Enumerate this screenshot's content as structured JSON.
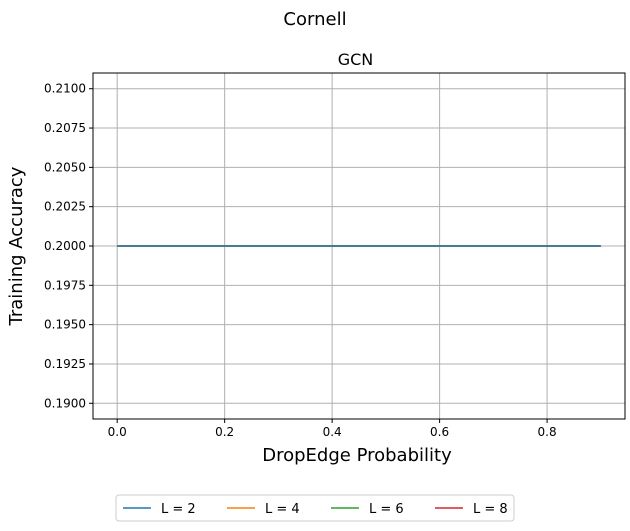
{
  "chart_data": {
    "type": "line",
    "suptitle": "Cornell",
    "title": "GCN",
    "xlabel": "DropEdge Probability",
    "ylabel": "Training Accuracy",
    "xlim": [
      -0.045,
      0.945
    ],
    "ylim": [
      0.189,
      0.211
    ],
    "xticks": [
      0.0,
      0.2,
      0.4,
      0.6,
      0.8
    ],
    "xtick_labels": [
      "0.0",
      "0.2",
      "0.4",
      "0.6",
      "0.8"
    ],
    "yticks": [
      0.19,
      0.1925,
      0.195,
      0.1975,
      0.2,
      0.2025,
      0.205,
      0.2075,
      0.21
    ],
    "ytick_labels": [
      "0.1900",
      "0.1925",
      "0.1950",
      "0.1975",
      "0.2000",
      "0.2025",
      "0.2050",
      "0.2075",
      "0.2100"
    ],
    "grid": true,
    "legend_position": "bottom-center",
    "x": [
      0.0,
      0.1,
      0.2,
      0.3,
      0.4,
      0.5,
      0.6,
      0.7,
      0.8,
      0.9
    ],
    "series": [
      {
        "name": "L = 2",
        "color": "#1f77b4",
        "values": [
          0.2,
          0.2,
          0.2,
          0.2,
          0.2,
          0.2,
          0.2,
          0.2,
          0.2,
          0.2
        ]
      },
      {
        "name": "L = 4",
        "color": "#ff7f0e",
        "values": [
          0.2,
          0.2,
          0.2,
          0.2,
          0.2,
          0.2,
          0.2,
          0.2,
          0.2,
          0.2
        ]
      },
      {
        "name": "L = 6",
        "color": "#2ca02c",
        "values": [
          0.2,
          0.2,
          0.2,
          0.2,
          0.2,
          0.2,
          0.2,
          0.2,
          0.2,
          0.2
        ]
      },
      {
        "name": "L = 8",
        "color": "#d62728",
        "values": [
          0.2,
          0.2,
          0.2,
          0.2,
          0.2,
          0.2,
          0.2,
          0.2,
          0.2,
          0.2
        ]
      }
    ]
  }
}
